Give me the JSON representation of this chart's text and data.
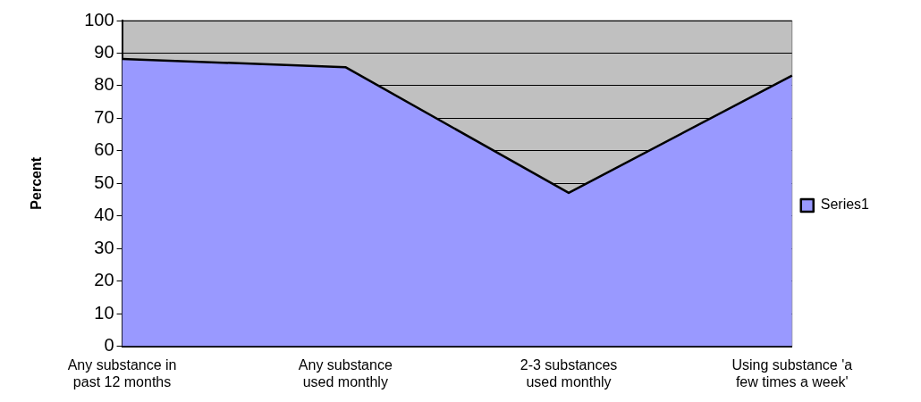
{
  "chart_data": {
    "type": "area",
    "ylabel": "Percent",
    "categories": [
      "Any substance in past 12 months",
      "Any substance used monthly",
      "2-3 substances used monthly",
      "Using substance 'a few times a week'"
    ],
    "series": [
      {
        "name": "Series1",
        "color": "#9999ff",
        "values": [
          88.2,
          85.7,
          47.1,
          83.1
        ]
      }
    ],
    "ylim": [
      0,
      100
    ],
    "yticks": [
      0,
      10,
      20,
      30,
      40,
      50,
      60,
      70,
      80,
      90,
      100
    ],
    "grid": "y",
    "legend": "right"
  }
}
